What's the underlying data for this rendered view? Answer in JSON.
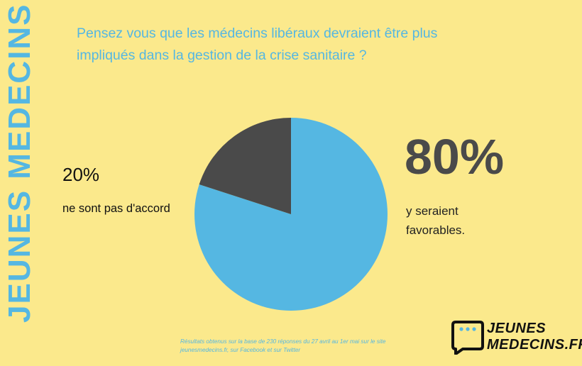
{
  "side_title": "JEUNES MEDECINS",
  "question": {
    "line1": "Pensez vous que les médecins libéraux devraient être plus",
    "line2": "impliqués dans la gestion de la crise sanitaire ?"
  },
  "chart_data": {
    "type": "pie",
    "slices": [
      {
        "label": "y seraient favorables.",
        "value": 80,
        "color": "#55b7e2"
      },
      {
        "label": "ne sont pas d'accord",
        "value": 20,
        "color": "#4a4a4a"
      }
    ],
    "start_angle_deg": 0,
    "direction": "clockwise"
  },
  "favorable": {
    "pct": "80%",
    "line1": "y seraient",
    "line2": "favorables."
  },
  "disagree": {
    "pct": "20%",
    "text": "ne sont pas d'accord"
  },
  "footnote": {
    "line1": "Résultats obtenus sur la base de 230 réponses du 27 avril au 1er mai sur le site",
    "line2": "jeunesmedecins.fr, sur Facebook et sur Twitter"
  },
  "logo": {
    "line1": "JEUNES",
    "line2": "MEDECINS.FR",
    "icon": "chat-bubble-icon"
  }
}
